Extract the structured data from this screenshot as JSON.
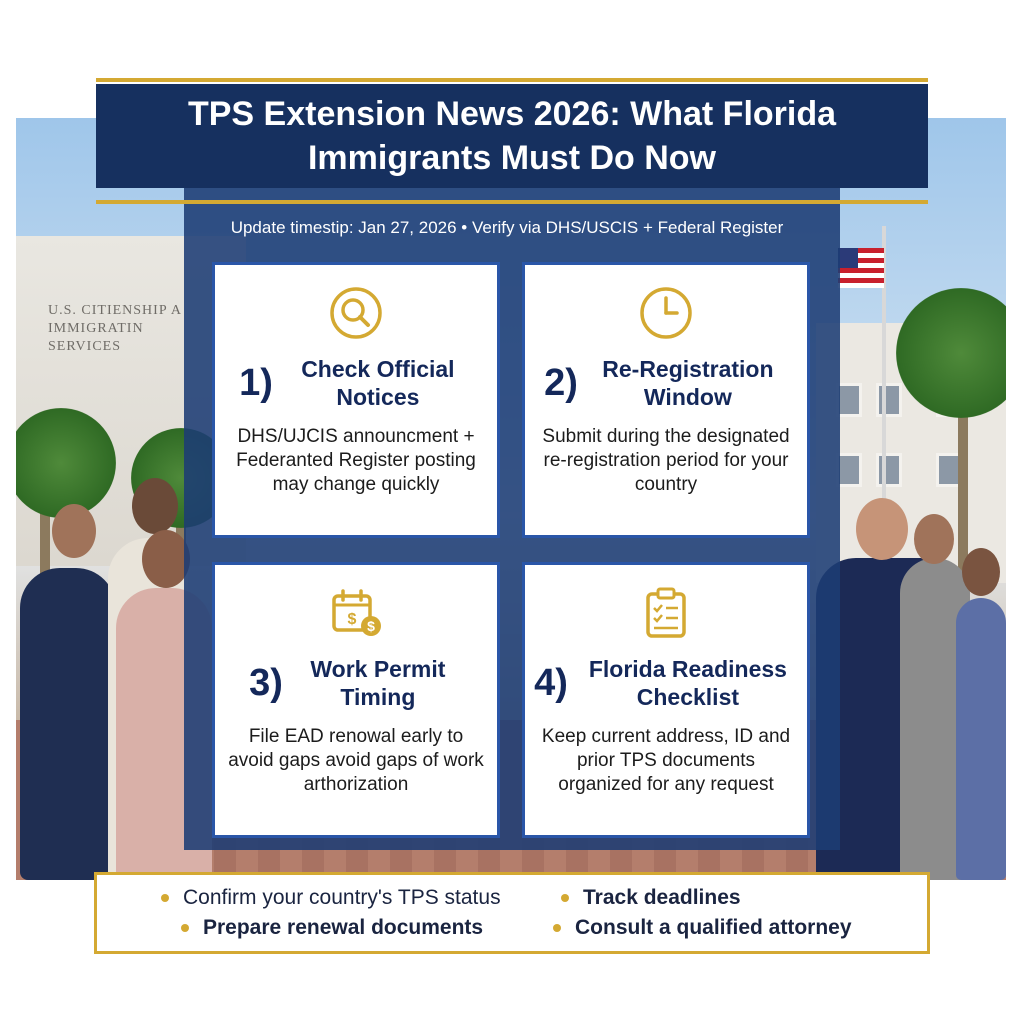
{
  "header": {
    "title": "TPS Extension News 2026: What Florida Immigrants Must Do Now"
  },
  "subline": "Update timestip: Jan 27, 2026 • Verify via DHS/USCIS + Federal Register",
  "building_sign": "U.S. CITIENSHIP A IMMIGRATIN SERVICES",
  "cards": [
    {
      "icon": "magnifier-icon",
      "number": "1)",
      "title": "Check Official Notices",
      "description": "DHS/UJCIS announcment + Federanted Register posting may change quickly"
    },
    {
      "icon": "clock-icon",
      "number": "2)",
      "title": "Re-Registration Window",
      "description": "Submit during the designated re-registration period for your country"
    },
    {
      "icon": "calendar-dollar-icon",
      "number": "3)",
      "title": "Work Permit Timing",
      "description": "File EAD renowal early to avoid gaps avoid gaps of work arthorization"
    },
    {
      "icon": "clipboard-checklist-icon",
      "number": "4)",
      "title": "Florida Readiness Checklist",
      "description": "Keep current address, ID and prior TPS documents organized for any request"
    }
  ],
  "checklist": [
    "Confirm your country's TPS status",
    "Track deadlines",
    "Prepare renewal documents",
    "Consult a qualified attorney"
  ],
  "colors": {
    "navy": "#16305f",
    "gold": "#d4a932",
    "card_border": "#2a56a8"
  }
}
